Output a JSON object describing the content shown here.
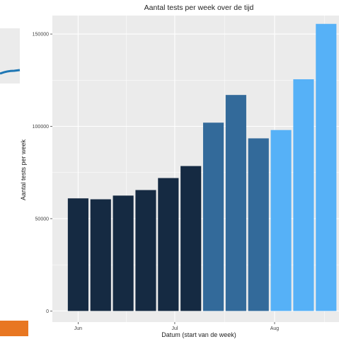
{
  "chart_data": {
    "type": "bar",
    "title": "Aantal tests per week over de tijd",
    "xlabel": "Datum (start van de week)",
    "ylabel": "Aantal tests per week",
    "x": [
      "2020-06-01",
      "2020-06-08",
      "2020-06-15",
      "2020-06-22",
      "2020-06-29",
      "2020-07-06",
      "2020-07-13",
      "2020-07-20",
      "2020-07-27",
      "2020-08-03",
      "2020-08-10",
      "2020-08-17"
    ],
    "values": [
      61000,
      60500,
      62500,
      65500,
      72000,
      78500,
      102000,
      117000,
      93500,
      98000,
      125500,
      155500
    ],
    "bar_colors": [
      "#152a42",
      "#152a42",
      "#152a42",
      "#152a42",
      "#152a42",
      "#152a42",
      "#336a9a",
      "#336a9a",
      "#336a9a",
      "#56b1f7",
      "#56b1f7",
      "#56b1f7"
    ],
    "ylim": [
      0,
      160000
    ],
    "yticks": [
      0,
      50000,
      100000,
      150000
    ],
    "ytick_labels": [
      "0",
      "50000",
      "100000",
      "150000"
    ],
    "xticks": [
      {
        "date": "2020-06-01",
        "label": "Jun"
      },
      {
        "date": "2020-07-01",
        "label": "Jul"
      },
      {
        "date": "2020-08-01",
        "label": "Aug"
      }
    ],
    "grid": true,
    "panel_background": "#ebebeb",
    "grid_color": "#ffffff",
    "legend": "none"
  }
}
